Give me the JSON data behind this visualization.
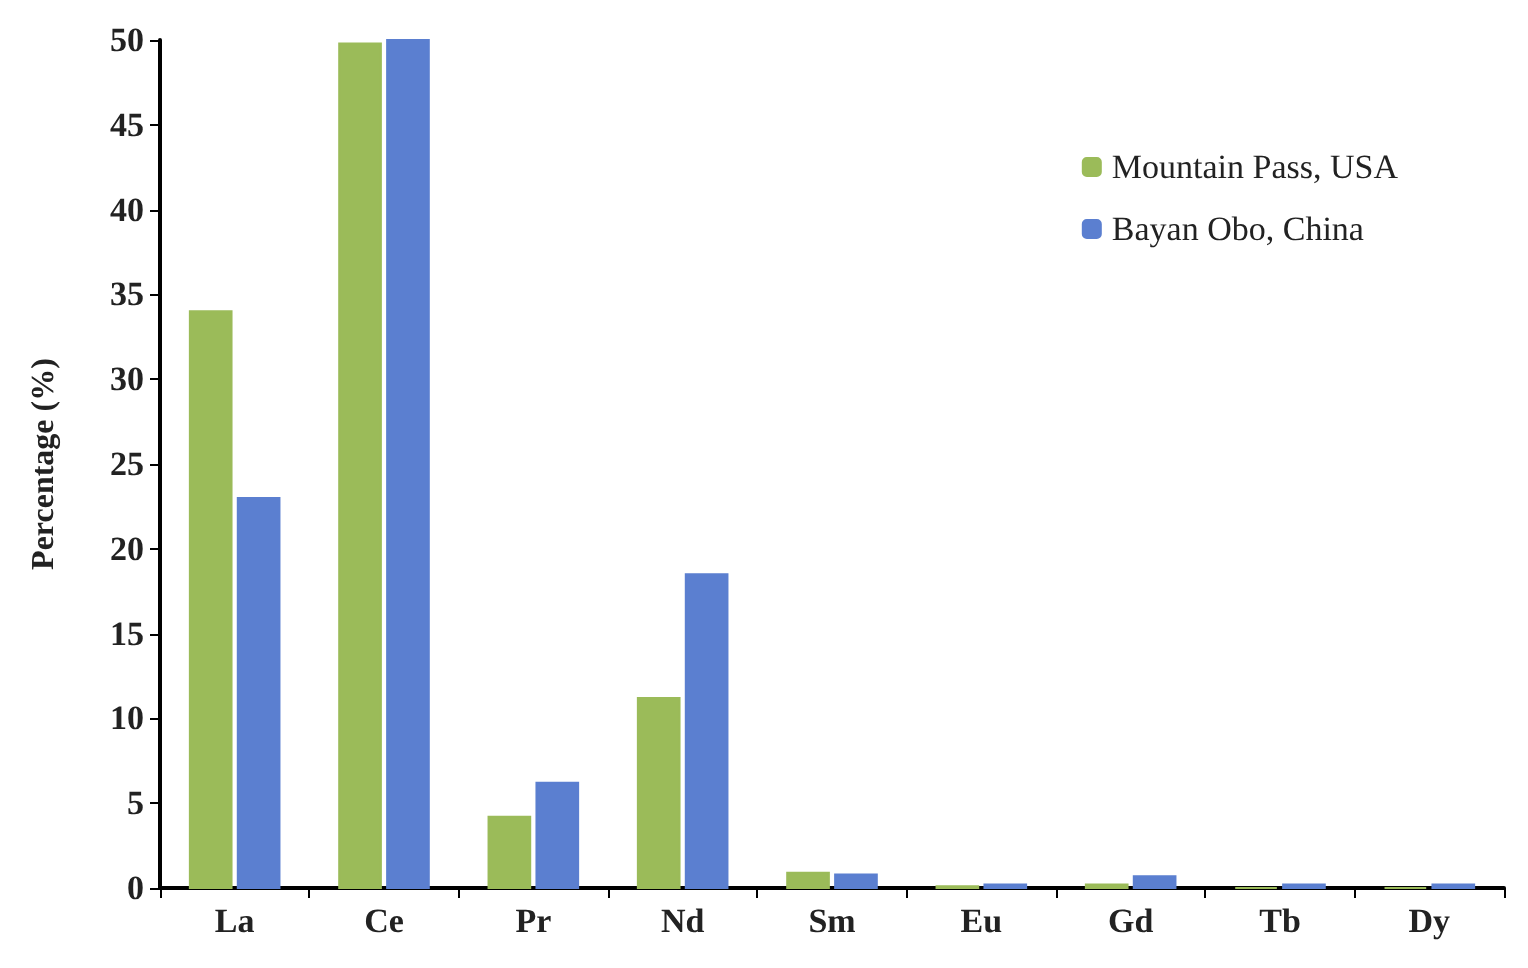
{
  "chart_data": {
    "type": "bar",
    "ylabel": "Percentage (%)",
    "categories": [
      "La",
      "Ce",
      "Pr",
      "Nd",
      "Sm",
      "Eu",
      "Gd",
      "Tb",
      "Dy"
    ],
    "series": [
      {
        "name": "Mountain Pass, USA",
        "color": "#9bbb59",
        "values": [
          34,
          49.8,
          4.2,
          11.2,
          0.9,
          0.1,
          0.2,
          0,
          0
        ]
      },
      {
        "name": "Bayan Obo, China",
        "color": "#5b7fd0",
        "values": [
          23,
          50,
          6.2,
          18.5,
          0.8,
          0.2,
          0.7,
          0.2,
          0.2
        ]
      }
    ],
    "ylim": [
      0,
      50
    ],
    "yticks": [
      0,
      5,
      10,
      15,
      20,
      25,
      30,
      35,
      40,
      45,
      50
    ],
    "grid": false,
    "legend": "top right"
  }
}
